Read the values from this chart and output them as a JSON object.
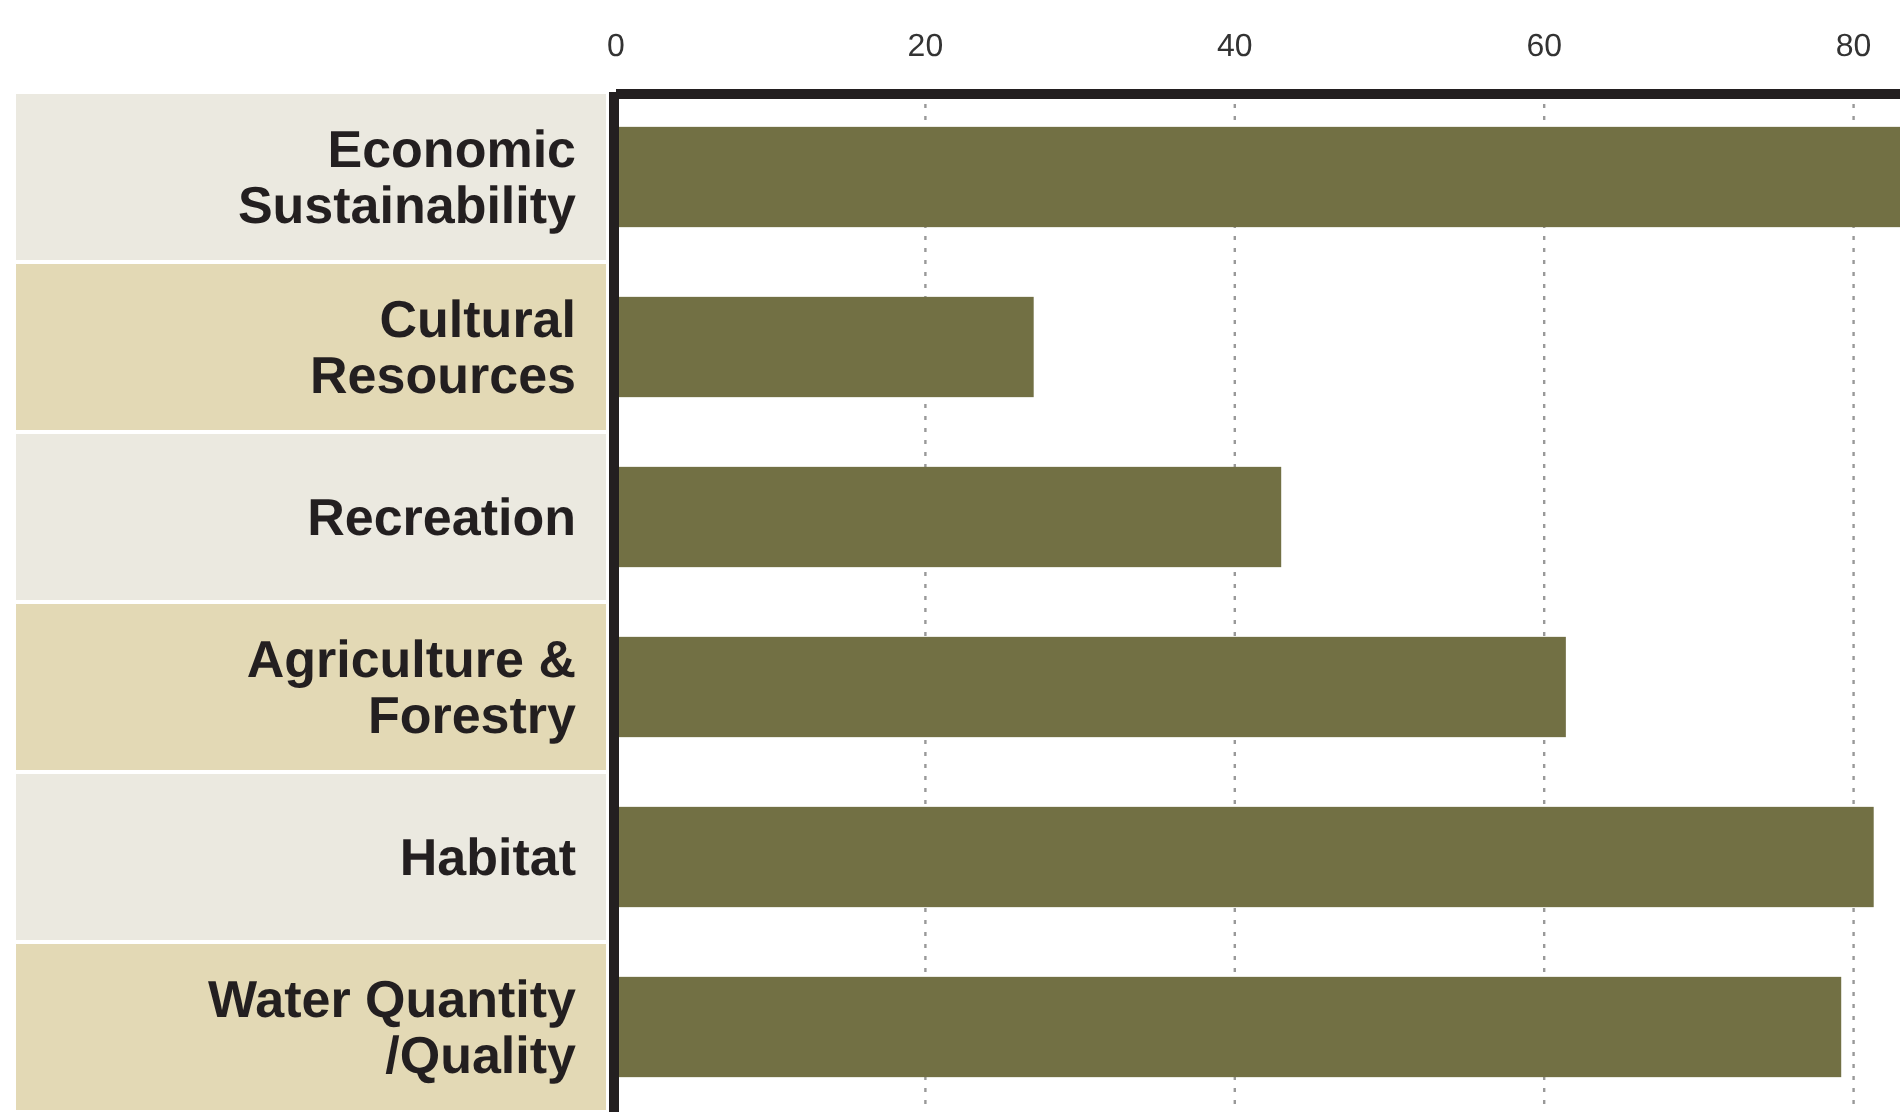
{
  "chart_data": {
    "type": "bar",
    "orientation": "horizontal",
    "categories": [
      "Economic Sustainability",
      "Cultural Resources",
      "Recreation",
      "Agriculture & Forestry",
      "Habitat",
      "Water Quantity /Quality"
    ],
    "values": [
      83,
      27,
      43,
      61.4,
      81.3,
      79.2
    ],
    "color": "#727044",
    "xlim": [
      0,
      83
    ],
    "xticks": [
      0,
      20,
      40,
      60,
      80
    ],
    "grid": "x"
  }
}
